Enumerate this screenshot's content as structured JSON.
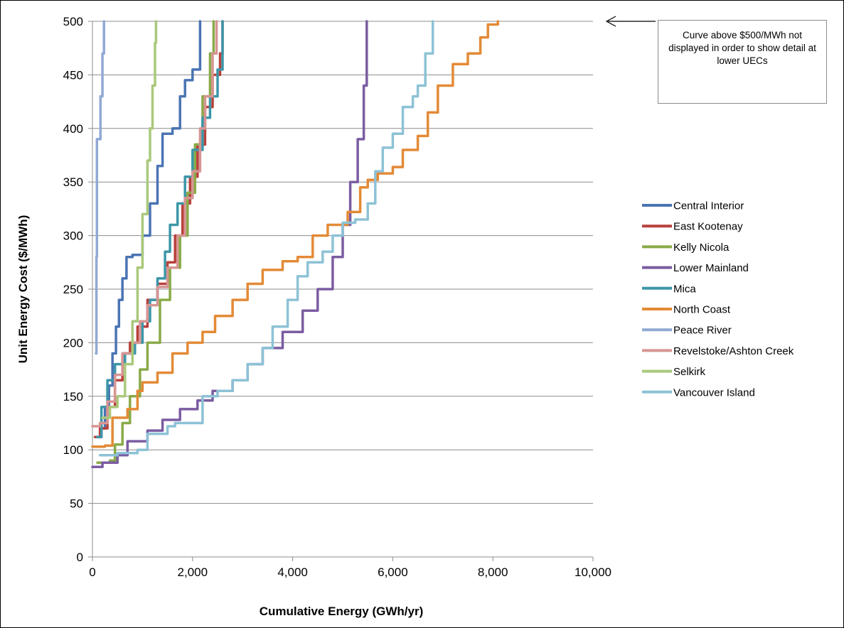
{
  "chart_data": {
    "type": "line",
    "xlabel": "Cumulative Energy (GWh/yr)",
    "ylabel": "Unit Energy Cost ($/MWh)",
    "xlim": [
      0,
      10000
    ],
    "ylim": [
      0,
      500
    ],
    "x_ticks": [
      "0",
      "2,000",
      "4,000",
      "6,000",
      "8,000",
      "10,000"
    ],
    "y_ticks": [
      "0",
      "50",
      "100",
      "150",
      "200",
      "250",
      "300",
      "350",
      "400",
      "450",
      "500"
    ],
    "grid": "horizontal",
    "legend_position": "right",
    "annotation": "Curve above $500/MWh not displayed in order to show detail at lower UECs",
    "series": [
      {
        "name": "Central Interior",
        "color": "#4a74b3",
        "points": [
          [
            100,
            112
          ],
          [
            180,
            120
          ],
          [
            250,
            140
          ],
          [
            330,
            160
          ],
          [
            400,
            190
          ],
          [
            470,
            215
          ],
          [
            530,
            240
          ],
          [
            600,
            260
          ],
          [
            680,
            280
          ],
          [
            800,
            282
          ],
          [
            1000,
            300
          ],
          [
            1150,
            330
          ],
          [
            1300,
            365
          ],
          [
            1400,
            395
          ],
          [
            1600,
            400
          ],
          [
            1750,
            430
          ],
          [
            1850,
            445
          ],
          [
            2000,
            455
          ],
          [
            2150,
            500
          ]
        ]
      },
      {
        "name": "East Kootenay",
        "color": "#b8403c",
        "points": [
          [
            50,
            112
          ],
          [
            150,
            120
          ],
          [
            300,
            140
          ],
          [
            450,
            165
          ],
          [
            600,
            190
          ],
          [
            750,
            200
          ],
          [
            900,
            215
          ],
          [
            1100,
            240
          ],
          [
            1300,
            255
          ],
          [
            1500,
            275
          ],
          [
            1650,
            300
          ],
          [
            1800,
            330
          ],
          [
            1950,
            355
          ],
          [
            2100,
            385
          ],
          [
            2250,
            420
          ],
          [
            2400,
            450
          ],
          [
            2550,
            470
          ],
          [
            2600,
            500
          ]
        ]
      },
      {
        "name": "Kelly Nicola",
        "color": "#8aaa48",
        "points": [
          [
            100,
            88
          ],
          [
            350,
            90
          ],
          [
            450,
            105
          ],
          [
            600,
            125
          ],
          [
            750,
            150
          ],
          [
            950,
            175
          ],
          [
            1100,
            200
          ],
          [
            1350,
            240
          ],
          [
            1550,
            270
          ],
          [
            1750,
            300
          ],
          [
            1900,
            340
          ],
          [
            2050,
            385
          ],
          [
            2200,
            430
          ],
          [
            2350,
            470
          ],
          [
            2420,
            500
          ]
        ]
      },
      {
        "name": "Lower Mainland",
        "color": "#7b5ca2",
        "points": [
          [
            0,
            84
          ],
          [
            200,
            88
          ],
          [
            500,
            95
          ],
          [
            700,
            108
          ],
          [
            1100,
            118
          ],
          [
            1400,
            128
          ],
          [
            1750,
            138
          ],
          [
            2100,
            146
          ],
          [
            2400,
            155
          ],
          [
            2800,
            165
          ],
          [
            3100,
            180
          ],
          [
            3400,
            195
          ],
          [
            3800,
            210
          ],
          [
            4200,
            230
          ],
          [
            4500,
            250
          ],
          [
            4800,
            280
          ],
          [
            5000,
            310
          ],
          [
            5150,
            350
          ],
          [
            5300,
            390
          ],
          [
            5420,
            440
          ],
          [
            5480,
            500
          ]
        ]
      },
      {
        "name": "Mica",
        "color": "#3c96a8",
        "points": [
          [
            100,
            112
          ],
          [
            180,
            140
          ],
          [
            300,
            165
          ],
          [
            450,
            180
          ],
          [
            650,
            190
          ],
          [
            850,
            200
          ],
          [
            1000,
            220
          ],
          [
            1150,
            240
          ],
          [
            1300,
            260
          ],
          [
            1450,
            285
          ],
          [
            1550,
            310
          ],
          [
            1700,
            330
          ],
          [
            1850,
            355
          ],
          [
            2000,
            380
          ],
          [
            2200,
            410
          ],
          [
            2350,
            430
          ],
          [
            2500,
            455
          ],
          [
            2600,
            500
          ]
        ]
      },
      {
        "name": "North Coast",
        "color": "#e38a36",
        "points": [
          [
            0,
            103
          ],
          [
            250,
            104
          ],
          [
            400,
            130
          ],
          [
            700,
            138
          ],
          [
            900,
            155
          ],
          [
            1000,
            163
          ],
          [
            1300,
            172
          ],
          [
            1600,
            190
          ],
          [
            1900,
            200
          ],
          [
            2200,
            210
          ],
          [
            2450,
            225
          ],
          [
            2800,
            240
          ],
          [
            3100,
            255
          ],
          [
            3400,
            268
          ],
          [
            3800,
            276
          ],
          [
            4100,
            280
          ],
          [
            4400,
            300
          ],
          [
            4700,
            310
          ],
          [
            5100,
            322
          ],
          [
            5350,
            345
          ],
          [
            5500,
            352
          ],
          [
            5700,
            358
          ],
          [
            6000,
            364
          ],
          [
            6200,
            380
          ],
          [
            6500,
            393
          ],
          [
            6700,
            415
          ],
          [
            6900,
            440
          ],
          [
            7200,
            460
          ],
          [
            7500,
            470
          ],
          [
            7750,
            485
          ],
          [
            7900,
            497
          ],
          [
            8100,
            500
          ]
        ]
      },
      {
        "name": "Peace River",
        "color": "#91a9d4",
        "points": [
          [
            70,
            190
          ],
          [
            80,
            280
          ],
          [
            90,
            390
          ],
          [
            160,
            430
          ],
          [
            200,
            470
          ],
          [
            230,
            500
          ]
        ]
      },
      {
        "name": "Revelstoke/Ashton Creek",
        "color": "#d69593",
        "points": [
          [
            0,
            122
          ],
          [
            150,
            125
          ],
          [
            300,
            145
          ],
          [
            450,
            170
          ],
          [
            600,
            190
          ],
          [
            800,
            200
          ],
          [
            950,
            220
          ],
          [
            1100,
            235
          ],
          [
            1300,
            252
          ],
          [
            1500,
            270
          ],
          [
            1700,
            300
          ],
          [
            1850,
            335
          ],
          [
            2000,
            360
          ],
          [
            2150,
            400
          ],
          [
            2250,
            430
          ],
          [
            2400,
            470
          ],
          [
            2480,
            500
          ]
        ]
      },
      {
        "name": "Selkirk",
        "color": "#a9c97c",
        "points": [
          [
            200,
            130
          ],
          [
            350,
            140
          ],
          [
            500,
            150
          ],
          [
            650,
            180
          ],
          [
            800,
            220
          ],
          [
            900,
            270
          ],
          [
            1000,
            320
          ],
          [
            1100,
            370
          ],
          [
            1150,
            400
          ],
          [
            1200,
            440
          ],
          [
            1250,
            480
          ],
          [
            1270,
            500
          ]
        ]
      },
      {
        "name": "Vancouver Island",
        "color": "#8dc2d6",
        "points": [
          [
            150,
            95
          ],
          [
            500,
            97
          ],
          [
            900,
            100
          ],
          [
            1100,
            115
          ],
          [
            1500,
            122
          ],
          [
            1650,
            125
          ],
          [
            2000,
            125
          ],
          [
            2200,
            150
          ],
          [
            2500,
            155
          ],
          [
            2800,
            165
          ],
          [
            3100,
            180
          ],
          [
            3400,
            195
          ],
          [
            3600,
            215
          ],
          [
            3900,
            240
          ],
          [
            4100,
            262
          ],
          [
            4300,
            275
          ],
          [
            4600,
            285
          ],
          [
            4800,
            300
          ],
          [
            5000,
            312
          ],
          [
            5250,
            315
          ],
          [
            5500,
            330
          ],
          [
            5650,
            360
          ],
          [
            5800,
            382
          ],
          [
            6000,
            395
          ],
          [
            6200,
            420
          ],
          [
            6400,
            430
          ],
          [
            6500,
            440
          ],
          [
            6650,
            470
          ],
          [
            6800,
            500
          ]
        ]
      }
    ]
  }
}
